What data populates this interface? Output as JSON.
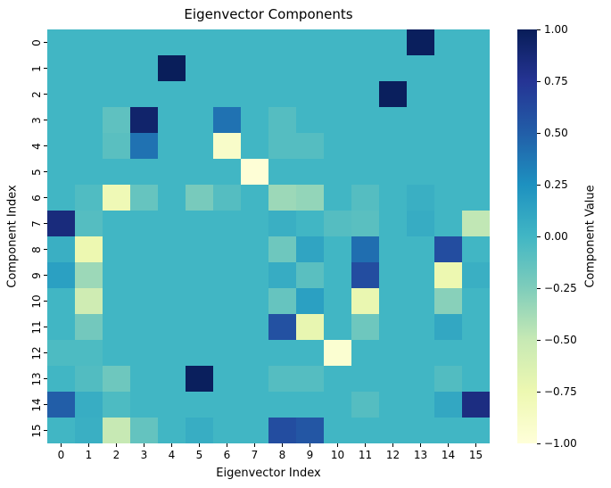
{
  "chart_data": {
    "type": "heatmap",
    "title": "Eigenvector Components",
    "xlabel": "Eigenvector Index",
    "ylabel": "Component Index",
    "colorbar_label": "Component Value",
    "colormap": "YlGnBu",
    "colormap_stops": [
      "#ffffd9",
      "#edf8b1",
      "#c7e9b4",
      "#7fcdbb",
      "#41b6c4",
      "#1d91c0",
      "#225ea8",
      "#253494",
      "#081d58"
    ],
    "vmin": -1.0,
    "vmax": 1.0,
    "x_ticklabels": [
      "0",
      "1",
      "2",
      "3",
      "4",
      "5",
      "6",
      "7",
      "8",
      "9",
      "10",
      "11",
      "12",
      "13",
      "14",
      "15"
    ],
    "y_ticklabels": [
      "0",
      "1",
      "2",
      "3",
      "4",
      "5",
      "6",
      "7",
      "8",
      "9",
      "10",
      "11",
      "12",
      "13",
      "14",
      "15"
    ],
    "colorbar_ticklabels": [
      "1.00",
      "0.75",
      "0.50",
      "0.25",
      "0.00",
      "−0.25",
      "−0.50",
      "−0.75",
      "−1.00"
    ],
    "matrix": [
      [
        0,
        0,
        0,
        0,
        0,
        0,
        0,
        0,
        0,
        0,
        0,
        0,
        0,
        0.98,
        0,
        0
      ],
      [
        0,
        0,
        0,
        0,
        0.99,
        0,
        0,
        0,
        0,
        0,
        0,
        0,
        0,
        0,
        0,
        0
      ],
      [
        0,
        0,
        0,
        0,
        0,
        0,
        0,
        0,
        0,
        0,
        0,
        0,
        0.98,
        0,
        0,
        0
      ],
      [
        0,
        0,
        -0.12,
        0.92,
        0,
        0,
        0.4,
        0,
        -0.08,
        0,
        0,
        0,
        0,
        0,
        0,
        0
      ],
      [
        0,
        0,
        -0.1,
        0.4,
        0,
        0,
        -0.9,
        0,
        -0.08,
        -0.08,
        0,
        0,
        0,
        0,
        0,
        0
      ],
      [
        0,
        0,
        0,
        0,
        0,
        0,
        0,
        -0.98,
        0,
        0,
        0,
        0,
        0,
        0,
        0,
        0
      ],
      [
        0,
        -0.06,
        -0.78,
        -0.15,
        0,
        -0.22,
        -0.08,
        0,
        -0.35,
        -0.32,
        0,
        -0.08,
        0,
        0.05,
        0,
        0
      ],
      [
        0.85,
        -0.08,
        0,
        0,
        0,
        0,
        0,
        0,
        0.05,
        0,
        -0.08,
        -0.1,
        0,
        0.07,
        0,
        -0.48
      ],
      [
        0.05,
        -0.75,
        0,
        0,
        0,
        0,
        0,
        0,
        -0.18,
        0.12,
        0,
        0.42,
        0,
        0,
        0.6,
        0
      ],
      [
        0.15,
        -0.35,
        0,
        0,
        0,
        0,
        0,
        0,
        0.07,
        -0.1,
        0,
        0.6,
        0,
        0,
        -0.75,
        0.05
      ],
      [
        0,
        -0.55,
        0,
        0,
        0,
        0,
        0,
        0,
        -0.15,
        0.15,
        0,
        -0.73,
        0,
        0,
        -0.28,
        0
      ],
      [
        0,
        -0.2,
        0,
        0,
        0,
        0,
        0,
        0,
        0.58,
        -0.72,
        0,
        -0.18,
        0,
        0,
        0.1,
        0
      ],
      [
        -0.05,
        -0.05,
        0,
        0,
        0,
        0,
        0,
        0,
        0,
        0,
        -0.95,
        0,
        0,
        0,
        0,
        0
      ],
      [
        0,
        -0.07,
        -0.18,
        0,
        0,
        0.98,
        0,
        0,
        -0.08,
        -0.08,
        0,
        0,
        0,
        0,
        -0.07,
        0
      ],
      [
        0.5,
        0.06,
        -0.05,
        0,
        0,
        0,
        0,
        0,
        0,
        0,
        0,
        -0.08,
        0,
        0,
        0.1,
        0.83
      ],
      [
        0,
        0.05,
        -0.5,
        -0.14,
        0,
        0.06,
        0,
        0,
        0.6,
        0.55,
        0,
        0,
        0,
        0,
        0,
        0
      ]
    ]
  }
}
